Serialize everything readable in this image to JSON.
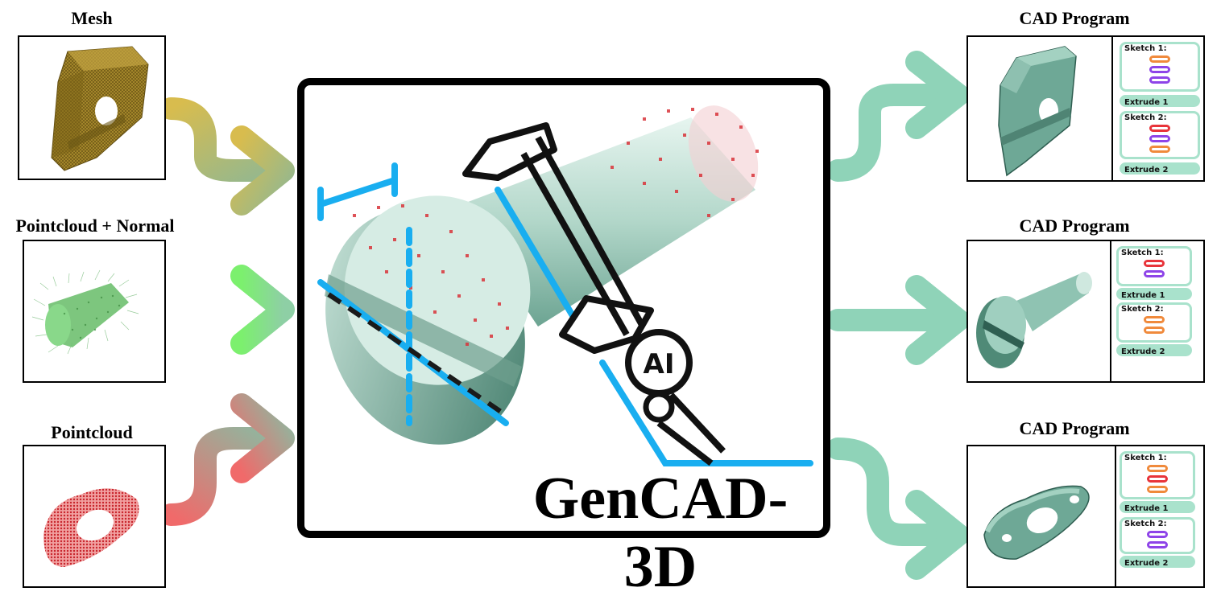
{
  "inputs": {
    "mesh_label": "Mesh",
    "pointcloud_normal_label": "Pointcloud + Normal",
    "pointcloud_label": "Pointcloud"
  },
  "center": {
    "brand": "GenCAD-3D",
    "badge": "AI"
  },
  "outputs": [
    {
      "title": "CAD Program",
      "sketch1": "Sketch 1:",
      "extrude1": "Extrude 1",
      "sketch2": "Sketch 2:",
      "extrude2": "Extrude 2"
    },
    {
      "title": "CAD Program",
      "sketch1": "Sketch 1:",
      "extrude1": "Extrude 1",
      "sketch2": "Sketch 2:",
      "extrude2": "Extrude 2"
    },
    {
      "title": "CAD Program",
      "sketch1": "Sketch 1:",
      "extrude1": "Extrude 1",
      "sketch2": "Sketch 2:",
      "extrude2": "Extrude 2"
    }
  ],
  "colors": {
    "output_green": "#8fd3b8",
    "mesh_gold": "#c9b24a",
    "normal_green": "#7fe07a",
    "pc_red": "#e36a6a",
    "caliper_blue": "#19aef0",
    "part_teal": "#5a9a86",
    "point_red": "#d9343a"
  }
}
